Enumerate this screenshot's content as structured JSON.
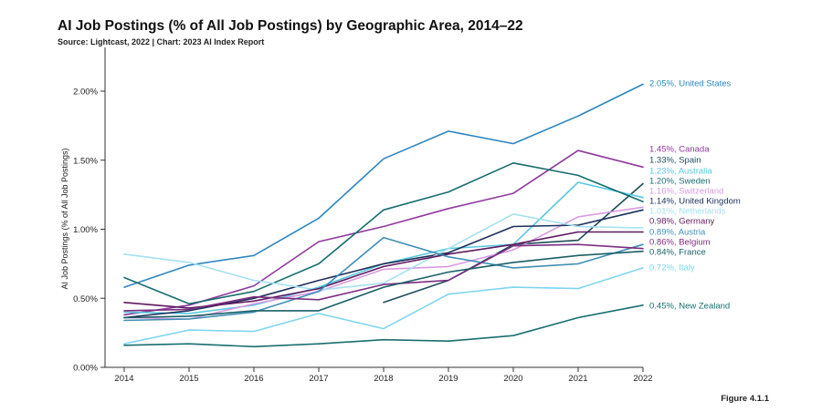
{
  "header": {
    "title": "AI Job Postings (% of All Job Postings) by Geographic Area, 2014–22",
    "subtitle": "Source: Lightcast, 2022 | Chart: 2023 AI Index Report"
  },
  "figure_label": "Figure 4.1.1",
  "chart_data": {
    "type": "line",
    "title": "AI Job Postings (% of All Job Postings) by Geographic Area, 2014–22",
    "subtitle": "Source: Lightcast, 2022 | Chart: 2023 AI Index Report",
    "xlabel": "",
    "ylabel": "AI Job Postings (% of All Job Postings)",
    "x": [
      2014,
      2015,
      2016,
      2017,
      2018,
      2019,
      2020,
      2021,
      2022
    ],
    "xlim": [
      2014,
      2022
    ],
    "ylim": [
      0,
      2.0
    ],
    "yticks": [
      0,
      0.5,
      1.0,
      1.5,
      2.0
    ],
    "ytick_labels": [
      "0.00%",
      "0.50%",
      "1.00%",
      "1.50%",
      "2.00%"
    ],
    "grid": false,
    "legend": "end-labels-right",
    "series": [
      {
        "name": "United States",
        "end_label": "2.05%, United States",
        "color": "#2e86c1",
        "values": [
          0.58,
          0.74,
          0.81,
          1.08,
          1.51,
          1.71,
          1.62,
          1.82,
          2.05
        ]
      },
      {
        "name": "Canada",
        "end_label": "1.45%, Canada",
        "color": "#8e3a9c",
        "values": [
          0.38,
          0.45,
          0.59,
          0.91,
          1.02,
          1.15,
          1.26,
          1.57,
          1.45
        ]
      },
      {
        "name": "Spain",
        "end_label": "1.33%, Spain",
        "color": "#1e4d5c",
        "values": [
          null,
          null,
          null,
          null,
          0.47,
          0.63,
          0.89,
          0.92,
          1.33
        ]
      },
      {
        "name": "Australia",
        "end_label": "1.23%, Australia",
        "color": "#5ac8e0",
        "values": [
          0.4,
          0.39,
          0.45,
          0.58,
          0.75,
          0.86,
          0.89,
          1.34,
          1.23
        ]
      },
      {
        "name": "Sweden",
        "end_label": "1.20%, Sweden",
        "color": "#176d6e",
        "values": [
          0.65,
          0.46,
          0.55,
          0.75,
          1.14,
          1.27,
          1.48,
          1.39,
          1.2
        ]
      },
      {
        "name": "Switzerland",
        "end_label": "1.16%, Switzerland",
        "color": "#d89be0",
        "values": [
          0.36,
          0.35,
          0.46,
          0.55,
          0.71,
          0.73,
          0.85,
          1.09,
          1.16
        ]
      },
      {
        "name": "United Kingdom",
        "end_label": "1.14%, United Kingdom",
        "color": "#1c2f5a",
        "values": [
          0.36,
          0.41,
          0.5,
          0.63,
          0.75,
          0.83,
          1.02,
          1.03,
          1.14
        ]
      },
      {
        "name": "Netherlands",
        "end_label": "1.01%, Netherlands",
        "color": "#a6e0f0",
        "values": [
          0.82,
          0.76,
          0.63,
          0.56,
          0.61,
          0.86,
          1.11,
          1.02,
          1.01
        ]
      },
      {
        "name": "Germany",
        "end_label": "0.98%, Germany",
        "color": "#5e1a5e",
        "values": [
          0.47,
          0.43,
          0.48,
          0.57,
          0.73,
          0.82,
          0.89,
          0.98,
          0.98
        ]
      },
      {
        "name": "Austria",
        "end_label": "0.89%, Austria",
        "color": "#3f8fb5",
        "values": [
          0.34,
          0.35,
          0.4,
          0.55,
          0.94,
          0.8,
          0.72,
          0.75,
          0.89
        ]
      },
      {
        "name": "Belgium",
        "end_label": "0.86%, Belgium",
        "color": "#7b2d80",
        "values": [
          0.41,
          0.42,
          0.51,
          0.49,
          0.6,
          0.63,
          0.88,
          0.89,
          0.86
        ]
      },
      {
        "name": "France",
        "end_label": "0.84%, France",
        "color": "#1a5f66",
        "values": [
          0.36,
          0.37,
          0.41,
          0.41,
          0.58,
          0.69,
          0.76,
          0.81,
          0.84
        ]
      },
      {
        "name": "Italy",
        "end_label": "0.72%, Italy",
        "color": "#7fd5ee",
        "values": [
          0.17,
          0.27,
          0.26,
          0.39,
          0.28,
          0.53,
          0.58,
          0.57,
          0.72
        ]
      },
      {
        "name": "New Zealand",
        "end_label": "0.45%, New Zealand",
        "color": "#1a6e6f",
        "values": [
          0.16,
          0.17,
          0.15,
          0.17,
          0.2,
          0.19,
          0.23,
          0.36,
          0.45
        ]
      }
    ]
  }
}
